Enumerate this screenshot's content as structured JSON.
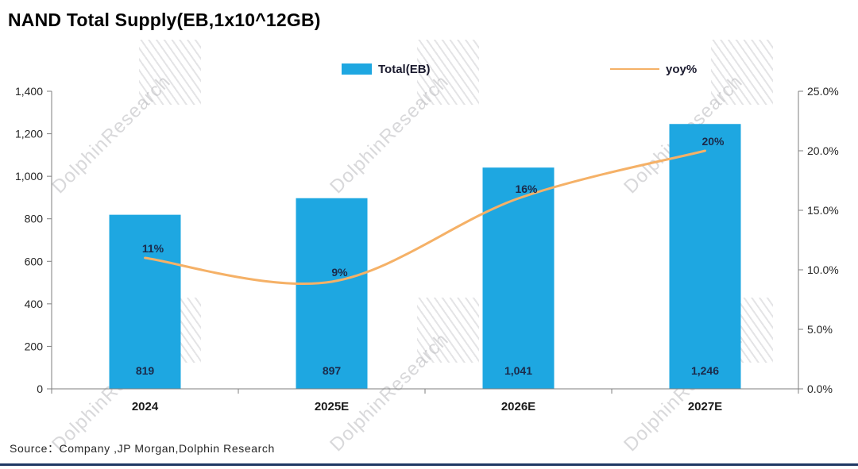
{
  "title": "NAND Total Supply(EB,1x10^12GB)",
  "legend": {
    "items": [
      {
        "label": "Total(EB)",
        "type": "bar",
        "color": "#1EA7E1"
      },
      {
        "label": "yoy%",
        "type": "line",
        "color": "#F5B167"
      }
    ]
  },
  "source": "Source：Company ,JP Morgan,Dolphin Research",
  "watermark": "DolphinResearch",
  "chart_data": {
    "type": "bar",
    "title": "NAND Total Supply(EB,1x10^12GB)",
    "xlabel": "",
    "ylabel": "",
    "categories": [
      "2024",
      "2025E",
      "2026E",
      "2027E"
    ],
    "series": [
      {
        "name": "Total(EB)",
        "type": "bar",
        "axis": "left",
        "color": "#1EA7E1",
        "values": [
          819,
          897,
          1041,
          1246
        ],
        "labels": [
          "819",
          "897",
          "1,041",
          "1,246"
        ]
      },
      {
        "name": "yoy%",
        "type": "line",
        "axis": "right",
        "color": "#F5B167",
        "values": [
          11,
          9,
          16,
          20
        ],
        "labels": [
          "11%",
          "9%",
          "16%",
          "20%"
        ]
      }
    ],
    "left_axis": {
      "min": 0,
      "max": 1400,
      "step": 200,
      "tick_labels": [
        "0",
        "200",
        "400",
        "600",
        "800",
        "1,000",
        "1,200",
        "1,400"
      ]
    },
    "right_axis": {
      "min": 0,
      "max": 25,
      "step": 5,
      "tick_labels": [
        "0.0%",
        "5.0%",
        "10.0%",
        "15.0%",
        "20.0%",
        "25.0%"
      ]
    },
    "grid": false,
    "legend_position": "top"
  }
}
